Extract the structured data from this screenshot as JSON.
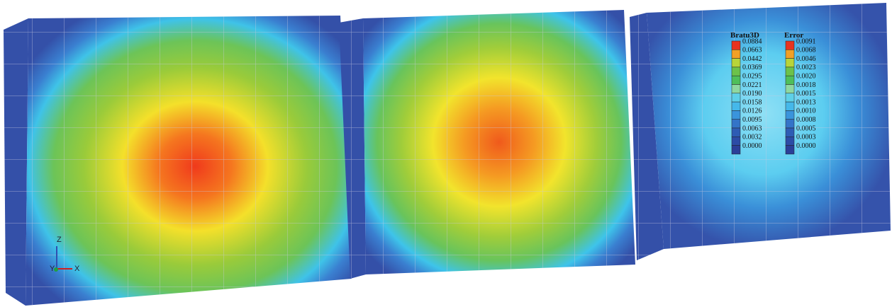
{
  "legends": [
    {
      "title": "Bratu3D",
      "labels": [
        "0.0884",
        "0.0663",
        "0.0442",
        "0.0369",
        "0.0295",
        "0.0221",
        "0.0190",
        "0.0158",
        "0.0126",
        "0.0095",
        "0.0063",
        "0.0032",
        "0.0000"
      ]
    },
    {
      "title": "Error",
      "labels": [
        "0.0091",
        "0.0068",
        "0.0046",
        "0.0023",
        "0.0020",
        "0.0018",
        "0.0015",
        "0.0013",
        "0.0010",
        "0.0008",
        "0.0005",
        "0.0003",
        "0.0000"
      ]
    }
  ],
  "axes": {
    "z": "Z",
    "y": "Y",
    "x": "X"
  }
}
